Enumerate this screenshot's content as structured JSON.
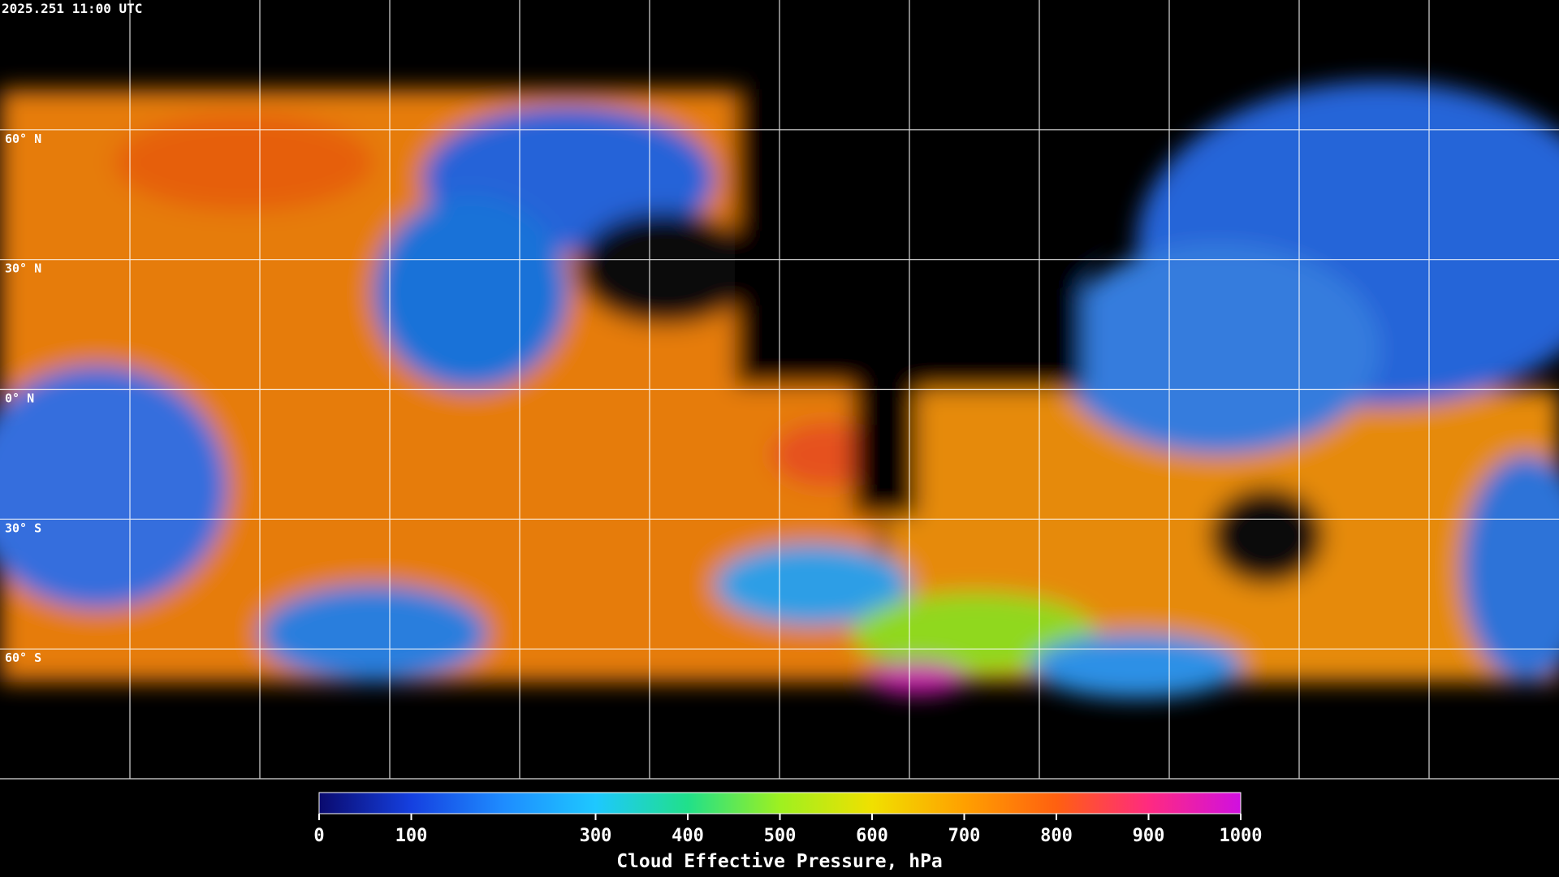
{
  "header": {
    "timestamp": "2025.251 11:00 UTC"
  },
  "map": {
    "lat_labels": [
      "60° N",
      "30° N",
      "0° N",
      "30° S",
      "60° S"
    ]
  },
  "colorbar": {
    "title": "Cloud Effective Pressure, hPa",
    "range": [
      0,
      1000
    ],
    "ticks": [
      0,
      100,
      300,
      400,
      500,
      600,
      700,
      800,
      900,
      1000
    ],
    "colors": [
      "#0a0a6e",
      "#1540e0",
      "#1e8cff",
      "#1ec8ff",
      "#20e08a",
      "#9ef020",
      "#f0e000",
      "#ffa000",
      "#ff6010",
      "#ff2a80",
      "#d010e0"
    ]
  }
}
